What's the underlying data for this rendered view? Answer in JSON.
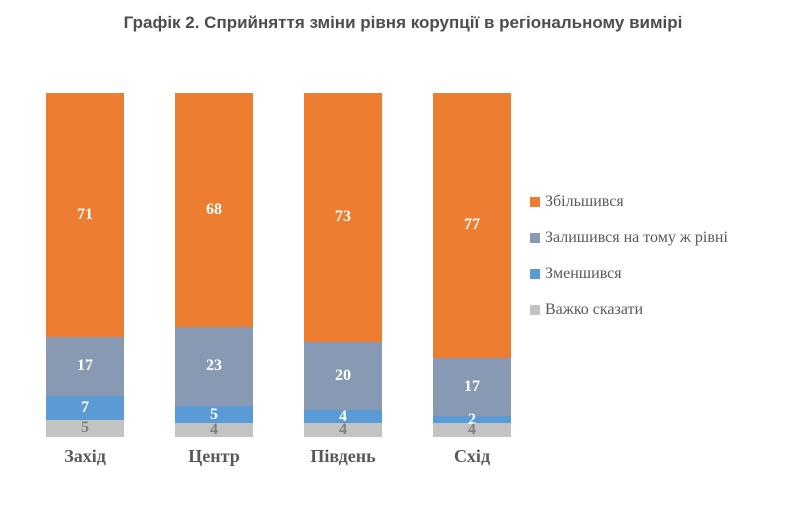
{
  "title": "Графік 2. Сприйняття зміни рівня корупції в регіональному вимірі",
  "chart_data": {
    "type": "bar",
    "subtype": "stacked-column-percent",
    "title": "Графік 2. Сприйняття зміни рівня корупції в регіональному вимірі",
    "categories": [
      "Захід",
      "Центр",
      "Південь",
      "Схід"
    ],
    "series": [
      {
        "name": "Збільшився",
        "color": "#ED7D31",
        "label_color": "#FFFFFF",
        "values": [
          71,
          68,
          73,
          77
        ]
      },
      {
        "name": "Залишився на тому ж рівні",
        "color": "#8799B3",
        "label_color": "#FFFFFF",
        "values": [
          17,
          23,
          20,
          17
        ]
      },
      {
        "name": "Зменшився",
        "color": "#5B9BD5",
        "label_color": "#FFFFFF",
        "values": [
          7,
          5,
          4,
          2
        ]
      },
      {
        "name": "Важко сказати",
        "color": "#C3C3C3",
        "label_color": "#7F7F7F",
        "values": [
          5,
          4,
          4,
          4
        ]
      }
    ],
    "legend_position": "right",
    "grid": false,
    "ylim": [
      0,
      100
    ],
    "value_labels": "center"
  }
}
